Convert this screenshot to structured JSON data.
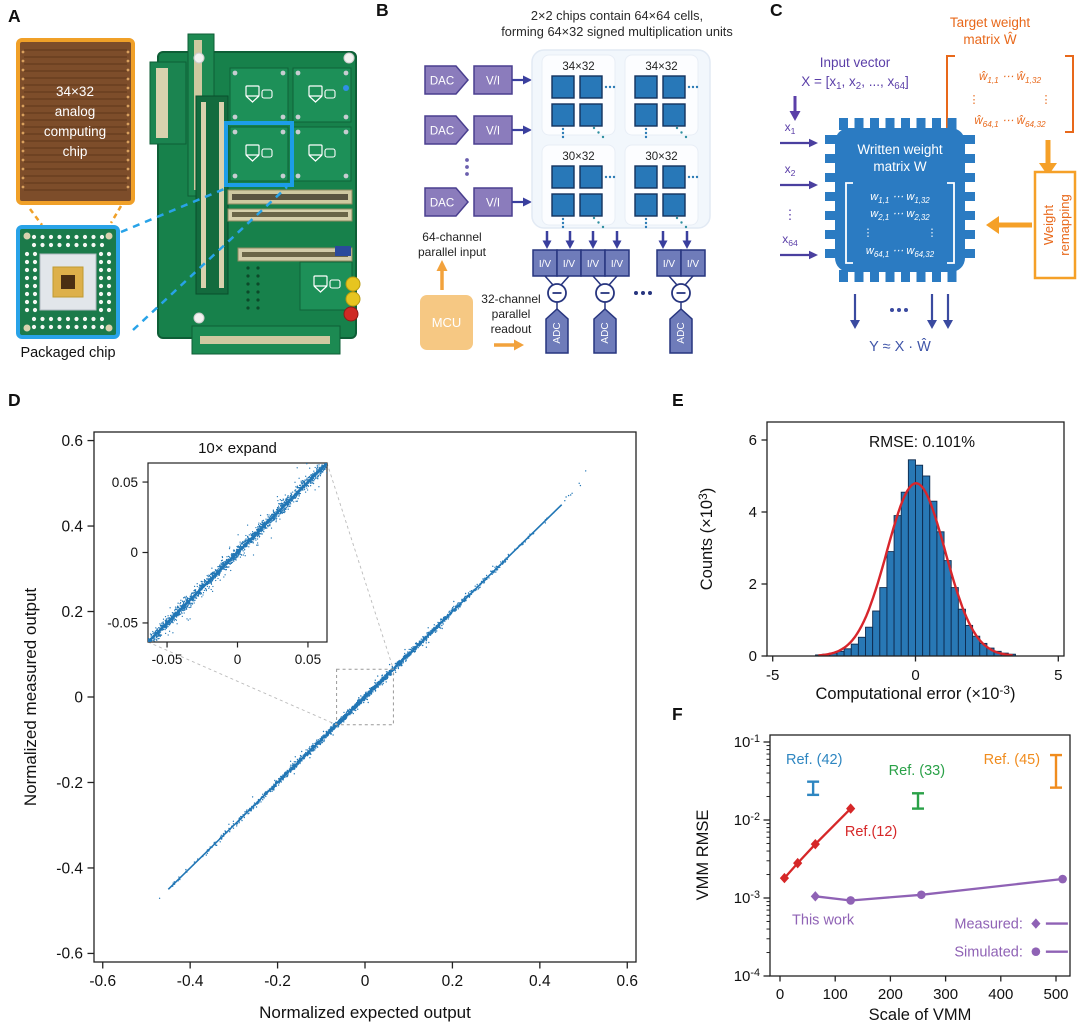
{
  "panels": {
    "a": "A",
    "b": "B",
    "c": "C",
    "d": "D",
    "e": "E",
    "f": "F"
  },
  "panel_a": {
    "chip_label_lines": [
      "34×32",
      "analog",
      "computing",
      "chip"
    ],
    "caption": "Packaged chip"
  },
  "panel_b": {
    "title_line1": "2×2 chips contain 64×64 cells,",
    "title_line2": "forming 64×32 signed multiplication units",
    "dac": "DAC",
    "vi": "V/I",
    "mcu": "MCU",
    "iv": "I/V",
    "adc": "ADC",
    "input_label_line1": "64-channel",
    "input_label_line2": "parallel input",
    "readout_line1": "32-channel",
    "readout_line2": "parallel",
    "readout_line3": "readout",
    "groups": [
      {
        "title": "34×32"
      },
      {
        "title": "34×32"
      },
      {
        "title": "30×32"
      },
      {
        "title": "30×32"
      }
    ]
  },
  "panel_c": {
    "target_title_line1": "Target weight",
    "target_title_line2": "matrix Ŵ",
    "target_row1": [
      {
        "t": "ŵ",
        "s": "1,1"
      },
      {
        "t": " ⋯ "
      },
      {
        "t": "ŵ",
        "s": "1,32"
      }
    ],
    "target_row2": [
      {
        "t": "ŵ",
        "s": "64,1"
      },
      {
        "t": " ⋯ "
      },
      {
        "t": "ŵ",
        "s": "64,32"
      }
    ],
    "vdots": "⋮",
    "input_vector_line1": "Input vector",
    "input_vector_line2_tokens": [
      {
        "t": "X = [x",
        "s": "1"
      },
      {
        "t": ", x",
        "s": "2"
      },
      {
        "t": ", ..., x",
        "s": "64"
      },
      {
        "t": "]"
      }
    ],
    "x_labels": [
      [
        {
          "t": "x",
          "s": "1"
        }
      ],
      [
        {
          "t": "x",
          "s": "2"
        }
      ],
      [
        {
          "t": "x",
          "s": "64"
        }
      ]
    ],
    "chip_title_line1": "Written weight",
    "chip_title_line2": "matrix W",
    "chip_row1": [
      {
        "t": "w",
        "s": "1,1"
      },
      {
        "t": " ⋯ "
      },
      {
        "t": "w",
        "s": "1,32"
      }
    ],
    "chip_row2": [
      {
        "t": "w",
        "s": "2,1"
      },
      {
        "t": " ⋯ "
      },
      {
        "t": "w",
        "s": "2,32"
      }
    ],
    "chip_row3": [
      {
        "t": "w",
        "s": "64,1"
      },
      {
        "t": " ⋯ "
      },
      {
        "t": "w",
        "s": "64,32"
      }
    ],
    "remap_line1": "Weight",
    "remap_line2": "remapping",
    "output_formula": "Y ≈ X · Ŵ"
  },
  "chart_data": [
    {
      "id": "D",
      "type": "scatter",
      "xlabel": "Normalized expected output",
      "ylabel": "Normalized measured output",
      "xlim": [
        -0.62,
        0.62
      ],
      "ylim": [
        -0.62,
        0.62
      ],
      "xticks": [
        -0.6,
        -0.4,
        -0.2,
        0,
        0.2,
        0.4,
        0.6
      ],
      "yticks": [
        -0.6,
        -0.4,
        -0.2,
        0,
        0.2,
        0.4,
        0.6
      ],
      "diagonal": {
        "x_min": -0.48,
        "x_max": 0.52,
        "slope": 1,
        "noise_sd": 0.0035,
        "n_points": 2300,
        "band_core": 0.42
      },
      "extreme_points": [
        [
          -0.47,
          -0.471
        ],
        [
          0.505,
          0.529
        ],
        [
          0.49,
          0.5
        ],
        [
          0.46,
          0.468
        ],
        [
          -0.44,
          -0.443
        ]
      ],
      "zoom_box_half": 0.065,
      "inset": {
        "title": "10× expand",
        "lim": 0.0635,
        "ticks": [
          -0.05,
          0,
          0.05
        ],
        "n_points": 1900,
        "noise_sd": 0.0022
      },
      "point_color": "#2176b5"
    },
    {
      "id": "E",
      "type": "bar",
      "title": "RMSE: 0.101%",
      "xlabel_tokens": [
        "Computational error (×10",
        {
          "sup": "-3"
        },
        ")"
      ],
      "ylabel_tokens": [
        "Counts (×10",
        {
          "sup": "3"
        },
        ")"
      ],
      "xlim": [
        -5.2,
        5.2
      ],
      "ylim": [
        0,
        6.5
      ],
      "xticks": [
        -5,
        0,
        5
      ],
      "yticks": [
        0,
        2,
        4,
        6
      ],
      "bin_width": 0.25,
      "bin_centers": [
        -3.375,
        -3.125,
        -2.875,
        -2.625,
        -2.375,
        -2.125,
        -1.875,
        -1.625,
        -1.375,
        -1.125,
        -0.875,
        -0.625,
        -0.375,
        -0.125,
        0.125,
        0.375,
        0.625,
        0.875,
        1.125,
        1.375,
        1.625,
        1.875,
        2.125,
        2.375,
        2.625,
        2.875,
        3.125,
        3.375
      ],
      "counts": [
        0.03,
        0.05,
        0.08,
        0.13,
        0.2,
        0.33,
        0.52,
        0.8,
        1.25,
        1.9,
        2.9,
        3.9,
        4.55,
        5.45,
        5.3,
        5.0,
        4.3,
        3.45,
        2.65,
        1.9,
        1.3,
        0.85,
        0.55,
        0.35,
        0.22,
        0.13,
        0.08,
        0.05
      ],
      "fit": {
        "amp": 4.8,
        "mu": 0.02,
        "sigma": 1.02,
        "color": "#d8262c",
        "x_range": [
          -3.4,
          3.4
        ]
      },
      "bar_color": "#2878b5",
      "bar_edge": "#0e2a4d"
    },
    {
      "id": "F",
      "type": "line-log",
      "xlabel": "Scale of VMM",
      "ylabel": "VMM RMSE",
      "xlim": [
        -18,
        525
      ],
      "xticks": [
        0,
        100,
        200,
        300,
        400,
        500
      ],
      "y_decades": [
        -1,
        -2,
        -3,
        -4
      ],
      "series": [
        {
          "name": "Ref.(12)",
          "color": "#d62728",
          "marker": "diamond",
          "points": [
            [
              8,
              0.0018
            ],
            [
              32,
              0.0028
            ],
            [
              64,
              0.0049
            ],
            [
              128,
              0.014
            ]
          ],
          "label": "Ref.(12)",
          "label_pos": [
            165,
            0.0062
          ]
        },
        {
          "name": "This work",
          "color": "#8f62b5",
          "markers": [
            "diamond",
            "circle",
            "circle",
            "circle"
          ],
          "points": [
            [
              64,
              0.00105
            ],
            [
              128,
              0.00093
            ],
            [
              256,
              0.0011
            ],
            [
              512,
              0.00175
            ]
          ],
          "label": "This work",
          "label_pos": [
            78,
            0.00046
          ]
        }
      ],
      "error_bars": [
        {
          "name": "Ref. (42)",
          "color": "#2e86c1",
          "x": 60,
          "low": 0.021,
          "high": 0.031,
          "label": "Ref. (42)",
          "label_pos": [
            62,
            0.052
          ]
        },
        {
          "name": "Ref. (33)",
          "color": "#2aa148",
          "x": 250,
          "low": 0.014,
          "high": 0.022,
          "label": "Ref. (33)",
          "label_pos": [
            248,
            0.0377
          ]
        },
        {
          "name": "Ref. (45)",
          "color": "#f08c1e",
          "x": 500,
          "low": 0.026,
          "high": 0.068,
          "label": "Ref. (45)",
          "label_pos": [
            420,
            0.052
          ]
        }
      ],
      "legend": {
        "color": "#8f62b5",
        "items": [
          {
            "label": "Measured:",
            "marker": "diamond",
            "pos": [
              440,
              0.00047
            ]
          },
          {
            "label": "Simulated:",
            "marker": "circle",
            "pos": [
              440,
              0.000205
            ]
          }
        ]
      }
    }
  ]
}
